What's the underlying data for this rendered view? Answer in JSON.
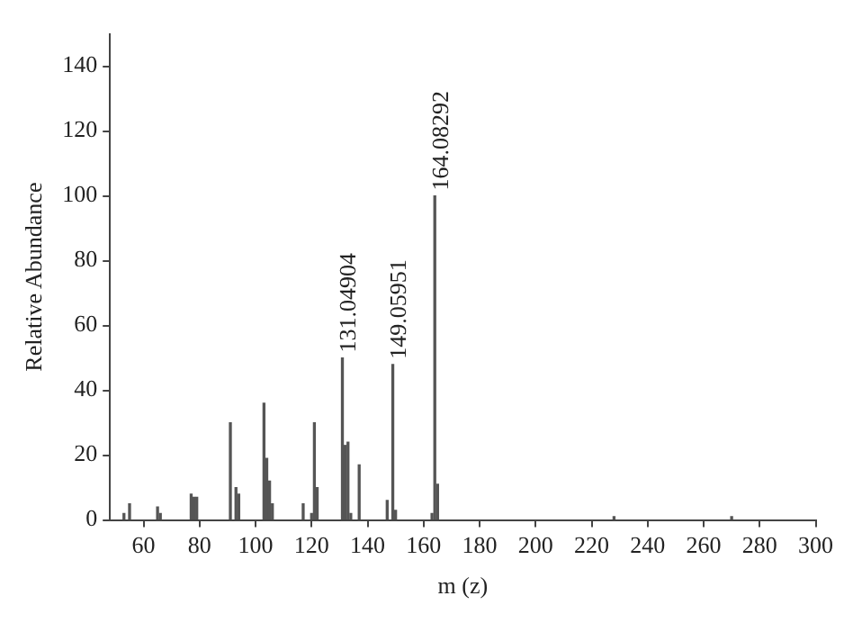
{
  "chart_data": {
    "type": "bar",
    "xlabel": "m (z)",
    "ylabel": "Relative Abundance",
    "x": [
      53,
      55,
      65,
      66,
      77,
      78,
      79,
      91,
      93,
      94,
      103,
      104,
      105,
      106,
      117,
      120,
      121,
      122,
      131,
      132,
      133,
      134,
      137,
      147,
      149,
      150,
      163,
      164,
      165,
      228,
      270
    ],
    "values": [
      2,
      5,
      4,
      2,
      8,
      7,
      7,
      30,
      10,
      8,
      36,
      19,
      12,
      5,
      5,
      2,
      30,
      10,
      50,
      23,
      24,
      2,
      17,
      6,
      48,
      3,
      2,
      100,
      11,
      1,
      1
    ],
    "color": "#555555",
    "xlim": [
      48,
      300
    ],
    "xticks": [
      60,
      80,
      100,
      120,
      140,
      160,
      180,
      200,
      220,
      240,
      260,
      280,
      300
    ],
    "ylim": [
      0,
      150
    ],
    "yticks": [
      0,
      20,
      40,
      60,
      80,
      100,
      120,
      140
    ],
    "grid": false,
    "legend": false,
    "annotations": [
      {
        "text": "131.04904",
        "x": 131,
        "y": 50
      },
      {
        "text": "149.05951",
        "x": 149,
        "y": 48
      },
      {
        "text": "164.08292",
        "x": 164,
        "y": 100
      }
    ]
  }
}
